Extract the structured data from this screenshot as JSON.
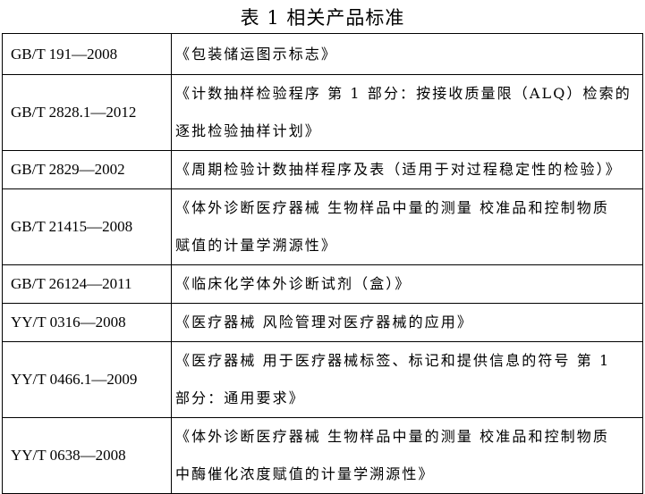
{
  "title": "表 1  相关产品标准",
  "rows": [
    {
      "code": "GB/T 191—2008",
      "lines": [
        "《包装储运图示标志》"
      ],
      "h": 1
    },
    {
      "code": "GB/T 2828.1—2012",
      "lines": [
        "《计数抽样检验程序 第 1 部分：按接收质量限（ALQ）检索的",
        "逐批检验抽样计划》"
      ]
    },
    {
      "code": "GB/T 2829—2002",
      "lines": [
        "《周期检验计数抽样程序及表（适用于对过程稳定性的检验）》"
      ]
    },
    {
      "code": "GB/T 21415—2008",
      "lines": [
        "《体外诊断医疗器械 生物样品中量的测量 校准品和控制物质",
        "赋值的计量学溯源性》"
      ]
    },
    {
      "code": "GB/T 26124—2011",
      "lines": [
        "《临床化学体外诊断试剂（盒）》"
      ]
    },
    {
      "code": "YY/T 0316—2008",
      "lines": [
        "《医疗器械 风险管理对医疗器械的应用》"
      ]
    },
    {
      "code": "YY/T 0466.1—2009",
      "lines": [
        "《医疗器械 用于医疗器械标签、标记和提供信息的符号 第 1",
        "部分：通用要求》"
      ]
    },
    {
      "code": "YY/T 0638—2008",
      "lines": [
        "《体外诊断医疗器械 生物样品中量的测量 校准品和控制物质",
        "中酶催化浓度赋值的计量学溯源性》"
      ]
    }
  ]
}
